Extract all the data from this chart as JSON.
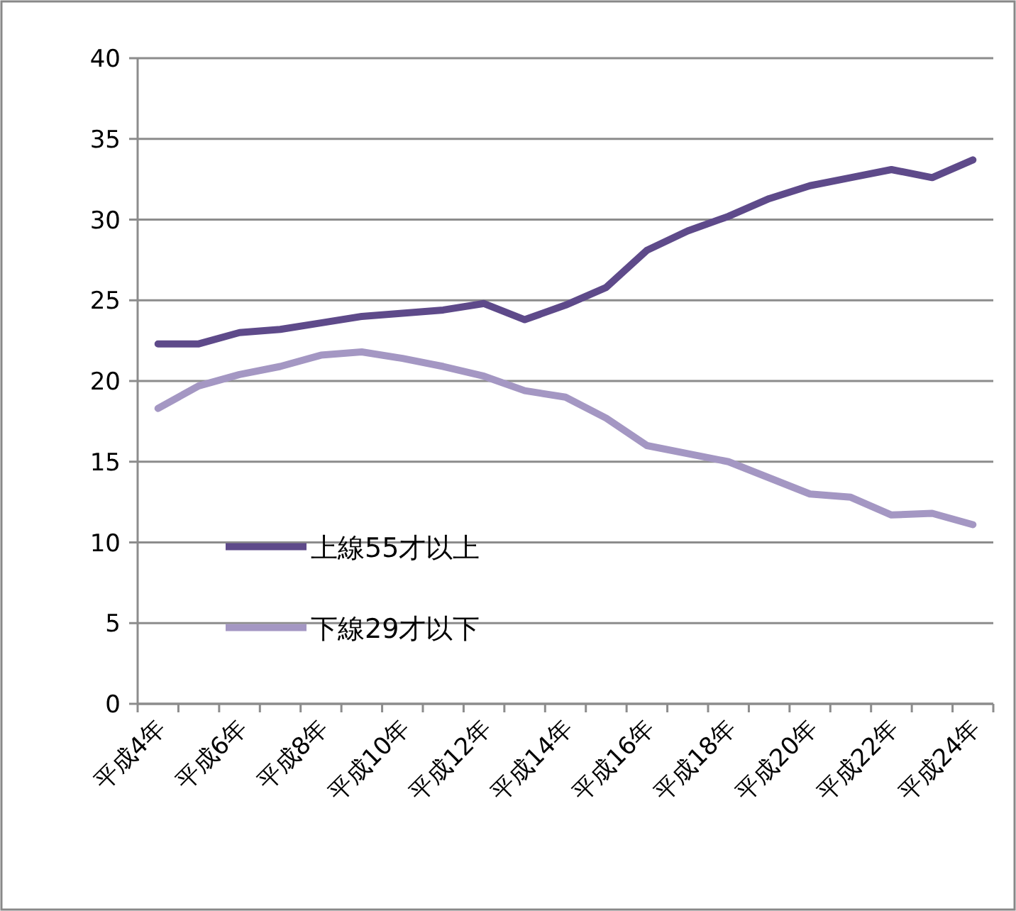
{
  "chart_data": {
    "type": "line",
    "categories": [
      "平成4年",
      null,
      "平成6年",
      null,
      "平成8年",
      null,
      "平成10年",
      null,
      "平成12年",
      null,
      "平成14年",
      null,
      "平成16年",
      null,
      "平成18年",
      null,
      "平成20年",
      null,
      "平成22年",
      null,
      "平成24年"
    ],
    "series": [
      {
        "name": "上線55才以上",
        "color": "#5e4a8a",
        "values": [
          22.3,
          22.3,
          23.0,
          23.2,
          23.6,
          24.0,
          24.2,
          24.4,
          24.8,
          23.8,
          24.7,
          25.8,
          28.1,
          29.3,
          30.2,
          31.3,
          32.1,
          32.6,
          33.1,
          32.6,
          33.7
        ]
      },
      {
        "name": "下線29才以下",
        "color": "#a497c3",
        "values": [
          18.3,
          19.7,
          20.4,
          20.9,
          21.6,
          21.8,
          21.4,
          20.9,
          20.3,
          19.4,
          19.0,
          17.7,
          16.0,
          15.5,
          15.0,
          14.0,
          13.0,
          12.8,
          11.7,
          11.8,
          11.1
        ]
      }
    ],
    "ylim": [
      0,
      40
    ],
    "yticks": [
      0,
      5,
      10,
      15,
      20,
      25,
      30,
      35,
      40
    ],
    "grid": "y",
    "legend": "bottom left",
    "marker": "none",
    "line_style": "solid"
  }
}
